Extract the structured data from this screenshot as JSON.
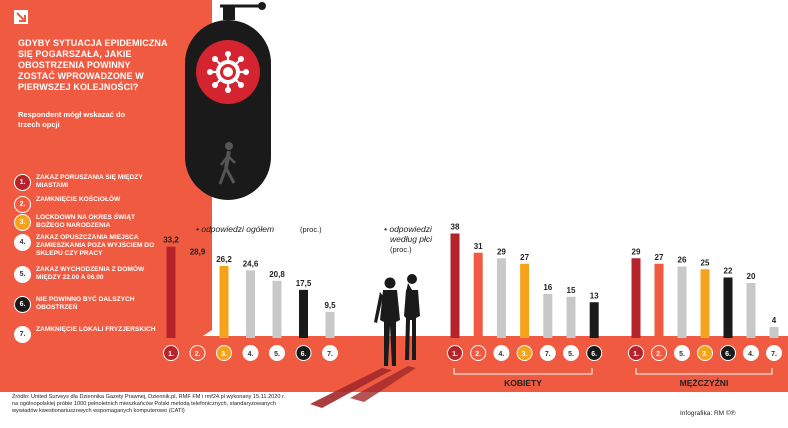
{
  "title": "GDYBY SYTUACJA EPIDEMICZNA SIĘ POGARSZAŁA, JAKIE OBOSTRZENIA POWINNY ZOSTAĆ WPROWADZONE W PIERWSZEJ KOLEJNOŚCI?",
  "note": "Respondent mógł wskazać do trzech opcji",
  "legend": [
    {
      "num": "1.",
      "label": "ZAKAZ PORUSZANIA SIĘ MIĘDZY MIASTAMI",
      "color": "#b5232b"
    },
    {
      "num": "2.",
      "label": "ZAMKNIĘCIE KOŚCIOŁÓW",
      "color": "#ef5a41"
    },
    {
      "num": "3.",
      "label": "LOCKDOWN NA OKRES ŚWIĄT BOŻEGO NARODZENIA",
      "color": "#f5a21c"
    },
    {
      "num": "4.",
      "label": "ZAKAZ OPUSZCZANIA MIEJSCA ZAMIESZKANIA POZA WYJŚCIEM DO SKLEPU CZY PRACY",
      "color": "#c8c8c8"
    },
    {
      "num": "5.",
      "label": "ZAKAZ WYCHODZENIA Z DOMÓW MIĘDZY 22.00 A 06.00",
      "color": "#c8c8c8"
    },
    {
      "num": "6.",
      "label": "NIE POWINNO BYĆ DALSZYCH OBOSTRZEŃ",
      "color": "#1a1a1a"
    },
    {
      "num": "7.",
      "label": "ZAMKNIĘCIE LOKALI FRYZJERSKICH",
      "color": "#c8c8c8"
    }
  ],
  "source": "Źródło: United Surveys dla Dziennika Gazety Prawnej, Dziennik.pl, RMF FM i rmf24.pl wykonany 15.11.2020 r. na ogólnopolskiej próbie 1000 pełnoletnich mieszkańców Polski metodą telefonicznych, standaryzowanych wywiadów kwestionariuszowych wspomaganych komputerowo (CATI)",
  "credit": "Infografika: RM",
  "credit_mark": "©℗",
  "chart_data": [
    {
      "type": "bar",
      "title": "odpowiedzi ogółem",
      "unit": "(proc.)",
      "categories": [
        "1.",
        "2.",
        "3.",
        "4.",
        "5.",
        "6.",
        "7."
      ],
      "values": [
        33.2,
        28.9,
        26.2,
        24.6,
        20.8,
        17.5,
        9.5
      ],
      "value_labels": [
        "33,2",
        "28,9",
        "26,2",
        "24,6",
        "20,8",
        "17,5",
        "9,5"
      ],
      "colors": [
        "#b5232b",
        "#ef5a41",
        "#f5a21c",
        "#c8c8c8",
        "#c8c8c8",
        "#1a1a1a",
        "#c8c8c8"
      ]
    },
    {
      "type": "bar",
      "title": "odpowiedzi według płci",
      "unit": "(proc.)",
      "group": "KOBIETY",
      "categories": [
        "1.",
        "2.",
        "4.",
        "3.",
        "7.",
        "5.",
        "6."
      ],
      "values": [
        38,
        31,
        29,
        27,
        16,
        15,
        13
      ],
      "value_labels": [
        "38",
        "31",
        "29",
        "27",
        "16",
        "15",
        "13"
      ],
      "colors": [
        "#b5232b",
        "#ef5a41",
        "#c8c8c8",
        "#f5a21c",
        "#c8c8c8",
        "#c8c8c8",
        "#1a1a1a"
      ]
    },
    {
      "type": "bar",
      "group": "MĘŻCZYŹNI",
      "categories": [
        "1.",
        "2.",
        "5.",
        "3.",
        "6.",
        "4.",
        "7."
      ],
      "values": [
        29,
        27,
        26,
        25,
        22,
        20,
        4
      ],
      "value_labels": [
        "29",
        "27",
        "26",
        "25",
        "22",
        "20",
        "4"
      ],
      "colors": [
        "#b5232b",
        "#ef5a41",
        "#c8c8c8",
        "#f5a21c",
        "#1a1a1a",
        "#c8c8c8",
        "#c8c8c8"
      ]
    }
  ]
}
